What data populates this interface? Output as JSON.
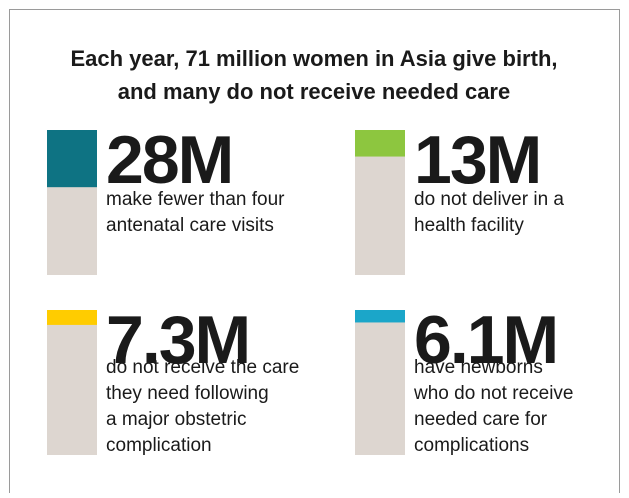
{
  "chart_data": {
    "type": "bar",
    "title": [
      "Each year, 71 million women in Asia give birth,",
      "and many do not receive needed care"
    ],
    "categories": [
      [
        "make fewer than four",
        "antenatal care visits"
      ],
      [
        "do not deliver in a",
        "health facility"
      ],
      [
        "do not receive the care",
        "they need following",
        "a major obstetric",
        "complication"
      ],
      [
        "have newborns",
        "who do not receive",
        "needed care for",
        "complications"
      ]
    ],
    "values": [
      28,
      13,
      7.3,
      6.1
    ],
    "value_labels": [
      "28M",
      "13M",
      "7.3M",
      "6.1M"
    ],
    "colors": [
      "#0e7383",
      "#8dc63f",
      "#ffcc00",
      "#1ba6c9"
    ],
    "ylim": [
      0,
      71
    ]
  }
}
